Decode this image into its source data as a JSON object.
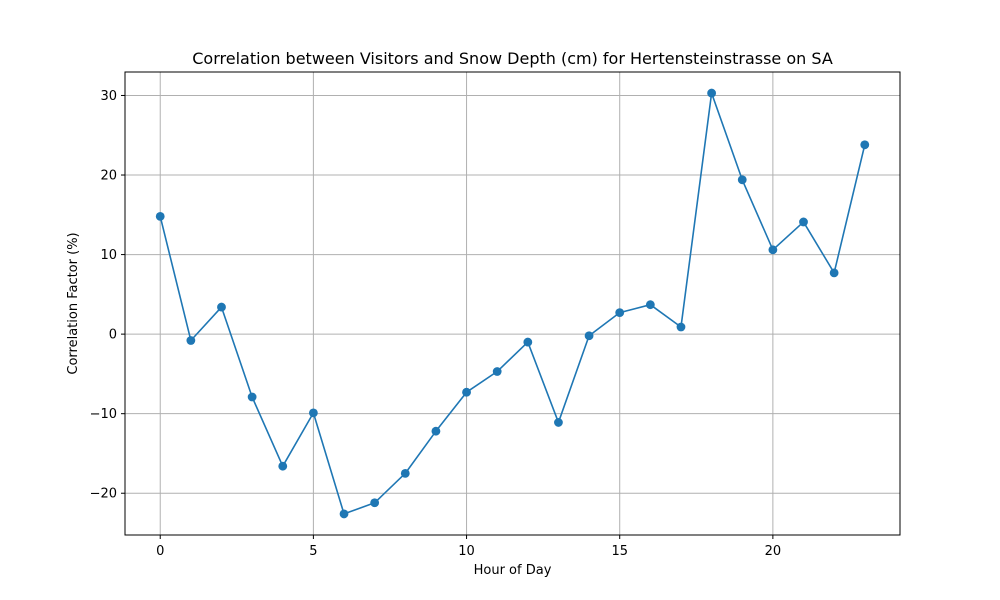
{
  "chart_data": {
    "type": "line",
    "title": "Correlation between Visitors and Snow Depth (cm) for Hertensteinstrasse on SA",
    "xlabel": "Hour of Day",
    "ylabel": "Correlation Factor (%)",
    "x": [
      0,
      1,
      2,
      3,
      4,
      5,
      6,
      7,
      8,
      9,
      10,
      11,
      12,
      13,
      14,
      15,
      16,
      17,
      18,
      19,
      20,
      21,
      22,
      23
    ],
    "series": [
      {
        "values": [
          14.8,
          -0.8,
          3.4,
          -7.9,
          -16.6,
          -9.9,
          -22.6,
          -21.2,
          -17.5,
          -12.2,
          -7.3,
          -4.7,
          -1.0,
          -11.1,
          -0.2,
          2.7,
          3.7,
          0.9,
          30.3,
          19.4,
          10.6,
          14.1,
          7.7,
          23.8
        ],
        "color": "#1f77b4",
        "marker": "circle"
      }
    ],
    "xlim": [
      -1.15,
      24.15
    ],
    "ylim": [
      -25.25,
      32.95
    ],
    "xticks": [
      0,
      5,
      10,
      15,
      20
    ],
    "xtick_labels": [
      "0",
      "5",
      "10",
      "15",
      "20"
    ],
    "yticks": [
      -20,
      -10,
      0,
      10,
      20,
      30
    ],
    "ytick_labels": [
      "−20",
      "−10",
      "0",
      "10",
      "20",
      "30"
    ],
    "grid": true,
    "legend": "none"
  }
}
